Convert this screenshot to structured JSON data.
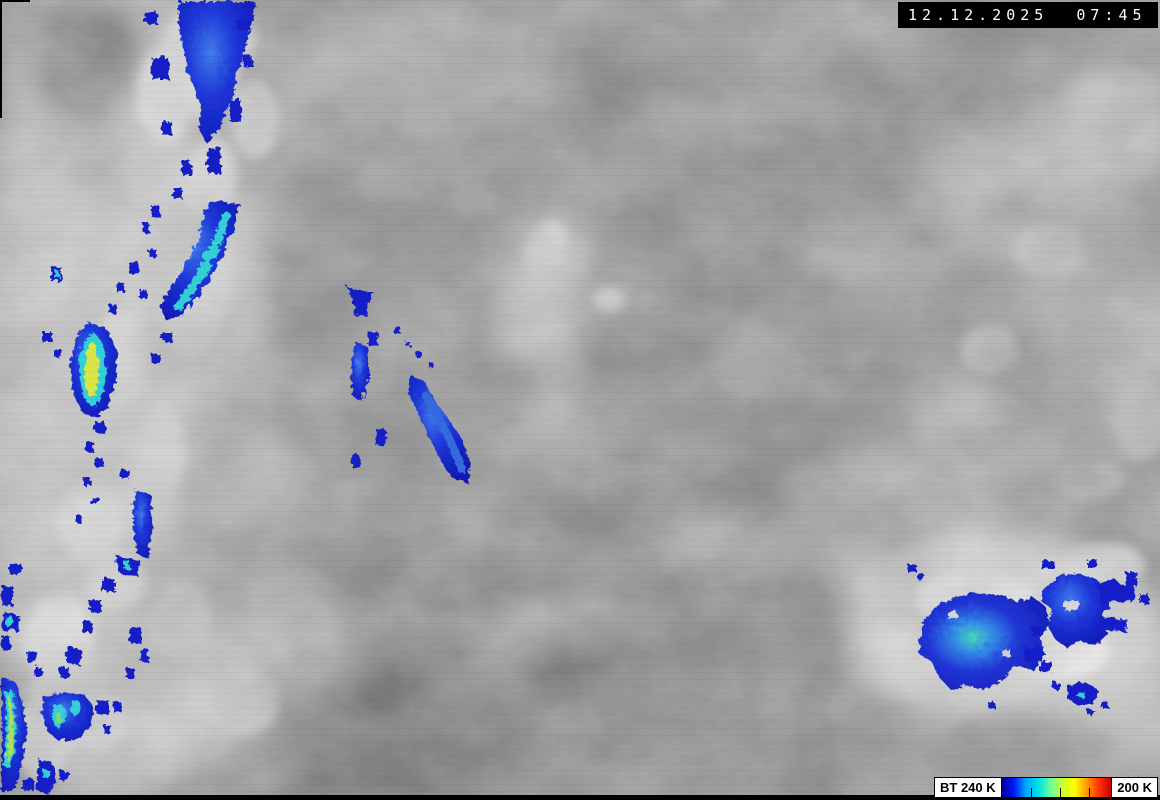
{
  "timestamp_overlay": {
    "text": "12.12.2025  07:45",
    "background": "#000000",
    "color": "#ffffff"
  },
  "legend": {
    "left_label": "BT 240 K",
    "right_label": "200 K",
    "colorbar": {
      "stops": [
        "#00008f",
        "#0018ff",
        "#00a8ff",
        "#00e0e8",
        "#66ff99",
        "#ccff33",
        "#ffff00",
        "#ff9900",
        "#ff3300",
        "#c40000"
      ],
      "tick_positions_pct": [
        27,
        53,
        80
      ]
    }
  },
  "scene": {
    "base_gray": "#9d9d9d",
    "cloud_light_gray": "#d8d8d8",
    "cloud_white": "#ececec",
    "cloud_dark_gray": "#6a6a6a",
    "cold_top_palette": {
      "deep_blue": "#0d18c8",
      "bright_blue": "#2e66e0",
      "cyan": "#2ed0d8",
      "green": "#7ae070",
      "yellow": "#dce840"
    }
  }
}
